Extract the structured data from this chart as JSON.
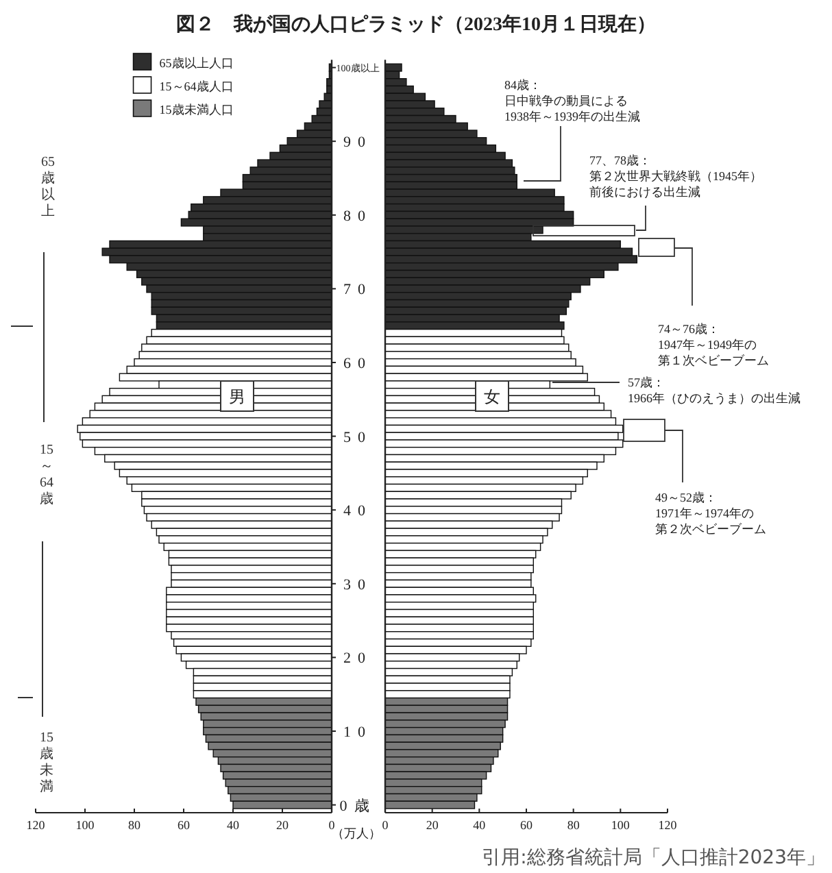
{
  "chart_data": [
    {
      "type": "bar",
      "orientation": "horizontal",
      "title": "図２　我が国の人口ピラミッド（2023年10月１日現在）",
      "xlabel": "（万人）",
      "legend": "top",
      "categories": [
        "100歳以上",
        null,
        null,
        null,
        null,
        null,
        null,
        null,
        null,
        null,
        "90",
        null,
        null,
        null,
        null,
        null,
        null,
        null,
        null,
        null,
        "80",
        null,
        null,
        null,
        null,
        null,
        null,
        null,
        null,
        null,
        "70",
        null,
        null,
        null,
        null,
        null,
        null,
        null,
        null,
        null,
        "60",
        null,
        null,
        null,
        null,
        null,
        null,
        null,
        null,
        null,
        "50",
        null,
        null,
        null,
        null,
        null,
        null,
        null,
        null,
        null,
        "40",
        null,
        null,
        null,
        null,
        null,
        null,
        null,
        null,
        null,
        "30",
        null,
        null,
        null,
        null,
        null,
        null,
        null,
        null,
        null,
        "20",
        null,
        null,
        null,
        null,
        null,
        null,
        null,
        null,
        null,
        "10",
        null,
        null,
        null,
        null,
        null,
        null,
        null,
        null,
        null,
        "0歳"
      ],
      "series": [
        {
          "name": "65歳以上人口",
          "color": "#2e2e2e",
          "values": [
            1,
            1,
            2,
            2,
            3,
            5,
            6,
            8,
            11,
            14,
            18,
            21,
            25,
            30,
            33,
            36,
            36,
            45,
            52,
            57,
            58,
            61,
            52,
            52,
            90,
            93,
            90,
            83,
            79,
            77,
            75,
            73,
            73,
            73,
            71,
            71,
            null,
            null,
            null,
            null,
            null,
            null,
            null,
            null,
            null,
            null,
            null,
            null,
            null,
            null,
            null,
            null,
            null,
            null,
            null,
            null,
            null,
            null,
            null,
            null,
            null,
            null,
            null,
            null,
            null,
            null,
            null,
            null,
            null,
            null,
            null,
            null,
            null,
            null,
            null,
            null,
            null,
            null,
            null,
            null,
            null,
            null,
            null,
            null,
            null,
            null,
            null,
            null,
            null,
            null,
            null,
            null,
            null,
            null,
            null,
            null,
            null,
            null,
            null,
            null,
            null
          ]
        },
        {
          "name": "15～64歳人口",
          "color": "#ffffff",
          "values": [
            null,
            null,
            null,
            null,
            null,
            null,
            null,
            null,
            null,
            null,
            null,
            null,
            null,
            null,
            null,
            null,
            null,
            null,
            null,
            null,
            null,
            null,
            null,
            null,
            null,
            null,
            null,
            null,
            null,
            null,
            null,
            null,
            null,
            null,
            null,
            null,
            73,
            75,
            77,
            78,
            80,
            83,
            86,
            70,
            90,
            93,
            96,
            98,
            101,
            103,
            102,
            101,
            96,
            92,
            88,
            86,
            83,
            81,
            77,
            77,
            76,
            75,
            73,
            71,
            70,
            68,
            66,
            66,
            65,
            65,
            65,
            67,
            67,
            67,
            67,
            67,
            67,
            65,
            64,
            63,
            61,
            59,
            56,
            56,
            56,
            56,
            null,
            null,
            null,
            null,
            null,
            null,
            null,
            null,
            null,
            null,
            null,
            null,
            null,
            null,
            null
          ]
        },
        {
          "name": "15歳未満人口",
          "color": "#7a7a7a",
          "values": [
            null,
            null,
            null,
            null,
            null,
            null,
            null,
            null,
            null,
            null,
            null,
            null,
            null,
            null,
            null,
            null,
            null,
            null,
            null,
            null,
            null,
            null,
            null,
            null,
            null,
            null,
            null,
            null,
            null,
            null,
            null,
            null,
            null,
            null,
            null,
            null,
            null,
            null,
            null,
            null,
            null,
            null,
            null,
            null,
            null,
            null,
            null,
            null,
            null,
            null,
            null,
            null,
            null,
            null,
            null,
            null,
            null,
            null,
            null,
            null,
            null,
            null,
            null,
            null,
            null,
            null,
            null,
            null,
            null,
            null,
            null,
            null,
            null,
            null,
            null,
            null,
            null,
            null,
            null,
            null,
            null,
            null,
            null,
            null,
            null,
            null,
            55,
            54,
            53,
            52,
            52,
            51,
            50,
            48,
            46,
            45,
            44,
            43,
            42,
            41,
            40
          ]
        }
      ],
      "xlim": [
        120,
        0
      ],
      "xticks": [
        120,
        100,
        80,
        60,
        40,
        20,
        0
      ],
      "annotations": [
        "男",
        "65歳以上",
        "15～64歳",
        "15歳未満"
      ]
    },
    {
      "type": "bar",
      "orientation": "horizontal",
      "tick_labels": "x",
      "categories": [
        null,
        null,
        null,
        null,
        null,
        null,
        null,
        null,
        null,
        null,
        null,
        null,
        null,
        null,
        null,
        null,
        null,
        null,
        null,
        null,
        null,
        null,
        null,
        null,
        null,
        null,
        null,
        null,
        null,
        null,
        null,
        null,
        null,
        null,
        null,
        null,
        null,
        null,
        null,
        null,
        null,
        null,
        null,
        null,
        null,
        null,
        null,
        null,
        null,
        null,
        null,
        null,
        null,
        null,
        null,
        null,
        null,
        null,
        null,
        null,
        null,
        null,
        null,
        null,
        null,
        null,
        null,
        null,
        null,
        null,
        null,
        null,
        null,
        null,
        null,
        null,
        null,
        null,
        null,
        null,
        null,
        null,
        null,
        null,
        null,
        null,
        null,
        null,
        null,
        null,
        null,
        null,
        null,
        null,
        null,
        null,
        null,
        null,
        null,
        null,
        null
      ],
      "series": [
        {
          "color": "#2e2e2e",
          "values": [
            7,
            6,
            9,
            12,
            17,
            21,
            25,
            30,
            35,
            39,
            43,
            47,
            51,
            54,
            55,
            56,
            56,
            72,
            76,
            76,
            80,
            80,
            67,
            62,
            100,
            105,
            107,
            99,
            93,
            87,
            83,
            79,
            78,
            77,
            74,
            76,
            null,
            null,
            null,
            null,
            null,
            null,
            null,
            null,
            null,
            null,
            null,
            null,
            null,
            null,
            null,
            null,
            null,
            null,
            null,
            null,
            null,
            null,
            null,
            null,
            null,
            null,
            null,
            null,
            null,
            null,
            null,
            null,
            null,
            null,
            null,
            null,
            null,
            null,
            null,
            null,
            null,
            null,
            null,
            null,
            null,
            null,
            null,
            null,
            null,
            null,
            null,
            null,
            null,
            null,
            null,
            null,
            null,
            null,
            null,
            null,
            null,
            null,
            null,
            null,
            null
          ]
        },
        {
          "color": "#ffffff",
          "values": [
            null,
            null,
            null,
            null,
            null,
            null,
            null,
            null,
            null,
            null,
            null,
            null,
            null,
            null,
            null,
            null,
            null,
            null,
            null,
            null,
            null,
            null,
            null,
            null,
            null,
            null,
            null,
            null,
            null,
            null,
            null,
            null,
            null,
            null,
            null,
            null,
            75,
            76,
            78,
            79,
            81,
            84,
            86,
            70,
            89,
            91,
            93,
            96,
            98,
            101,
            99,
            101,
            98,
            93,
            90,
            86,
            84,
            81,
            79,
            75,
            75,
            74,
            71,
            69,
            67,
            66,
            64,
            63,
            63,
            62,
            62,
            63,
            64,
            63,
            63,
            63,
            63,
            63,
            62,
            60,
            57,
            56,
            54,
            53,
            53,
            53,
            null,
            null,
            null,
            null,
            null,
            null,
            null,
            null,
            null,
            null,
            null,
            null,
            null,
            null,
            null
          ]
        },
        {
          "color": "#7a7a7a",
          "values": [
            null,
            null,
            null,
            null,
            null,
            null,
            null,
            null,
            null,
            null,
            null,
            null,
            null,
            null,
            null,
            null,
            null,
            null,
            null,
            null,
            null,
            null,
            null,
            null,
            null,
            null,
            null,
            null,
            null,
            null,
            null,
            null,
            null,
            null,
            null,
            null,
            null,
            null,
            null,
            null,
            null,
            null,
            null,
            null,
            null,
            null,
            null,
            null,
            null,
            null,
            null,
            null,
            null,
            null,
            null,
            null,
            null,
            null,
            null,
            null,
            null,
            null,
            null,
            null,
            null,
            null,
            null,
            null,
            null,
            null,
            null,
            null,
            null,
            null,
            null,
            null,
            null,
            null,
            null,
            null,
            null,
            null,
            null,
            null,
            null,
            null,
            52,
            52,
            52,
            51,
            50,
            50,
            49,
            48,
            46,
            45,
            43,
            41,
            41,
            39,
            38
          ]
        }
      ],
      "xlim": [
        0,
        120
      ],
      "xticks": [
        0,
        20,
        40,
        60,
        80,
        100,
        120
      ],
      "annotations": [
        "女",
        "84歳：日中戦争の動員による1938年～1939年の出生減",
        "77、78歳：第２次世界大戦終戦（1945年）前後における出生減",
        "74～76歳：1947年～1949年の第１次ベビーブーム",
        "57歳：1966年（ひのえうま）の出生減",
        "49～52歳：1971年～1974年の第２次ベビーブーム",
        "引用:総務省統計局「人口推計2023年」"
      ]
    }
  ]
}
